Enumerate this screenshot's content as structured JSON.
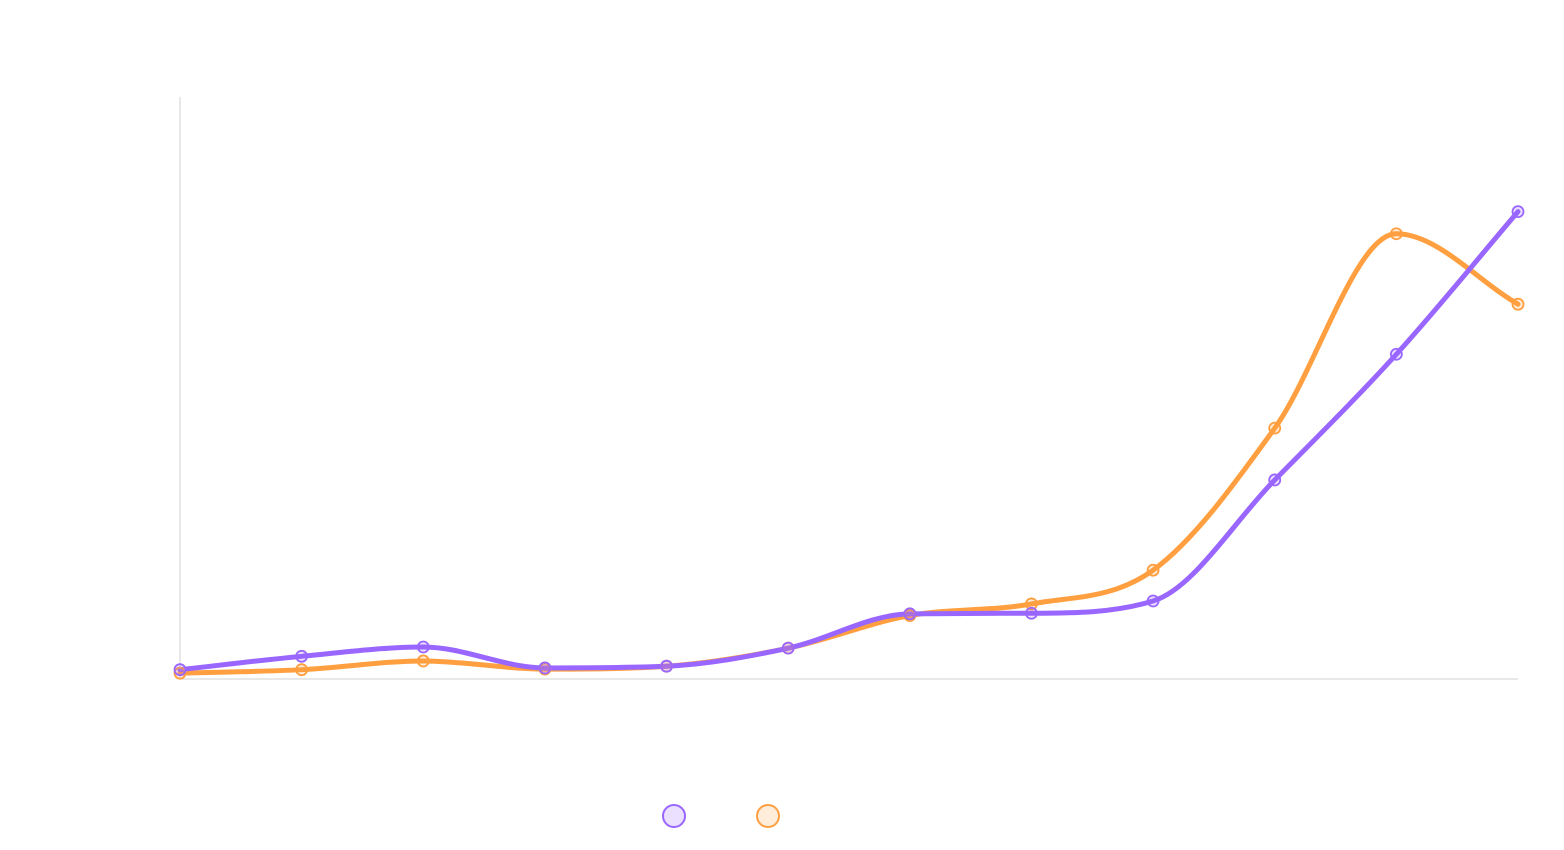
{
  "chart_data": {
    "type": "line",
    "x": [
      1,
      2,
      3,
      4,
      5,
      6,
      7,
      8,
      9,
      10,
      11,
      12
    ],
    "ylim": [
      0,
      100
    ],
    "grid": false,
    "legend_position": "bottom",
    "series": [
      {
        "color": "#9966ff",
        "values": [
          1.6,
          3.9,
          5.5,
          1.9,
          2.2,
          5.3,
          11.2,
          11.3,
          13.4,
          34.2,
          55.8,
          80.3
        ]
      },
      {
        "color": "#ff9f40",
        "values": [
          1.0,
          1.6,
          3.1,
          1.7,
          2.2,
          5.3,
          10.9,
          12.9,
          18.7,
          43.1,
          76.5,
          64.4
        ]
      }
    ]
  }
}
